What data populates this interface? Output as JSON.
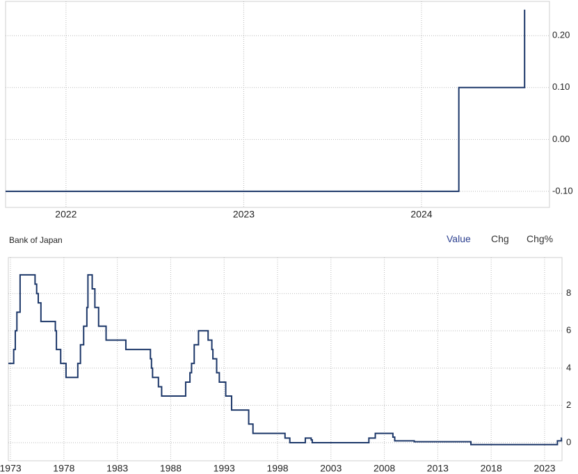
{
  "header": {
    "source": "Bank of Japan",
    "tabs": [
      "Value",
      "Chg",
      "Chg%"
    ]
  },
  "chart_data": [
    {
      "type": "line",
      "color": "#1b3668",
      "grid": true,
      "x": [
        2021.66,
        2024.21,
        2024.21,
        2024.58,
        2024.58
      ],
      "values": [
        -0.1,
        -0.1,
        0.1,
        0.1,
        0.25
      ],
      "xlim": [
        2021.66,
        2024.72
      ],
      "xticks": [
        2022,
        2023,
        2024
      ],
      "ylim": [
        -0.131,
        0.266
      ],
      "yticks": [
        {
          "value": -0.1,
          "label": "-0.10"
        },
        {
          "value": 0,
          "label": "0.00"
        },
        {
          "value": 0.1,
          "label": "0.10"
        },
        {
          "value": 0.2,
          "label": "0.20"
        }
      ]
    },
    {
      "type": "line",
      "color": "#1b3668",
      "grid": true,
      "x": [
        1972.8,
        1973.3,
        1973.3,
        1973.45,
        1973.45,
        1973.6,
        1973.6,
        1973.9,
        1973.9,
        1975.3,
        1975.3,
        1975.45,
        1975.45,
        1975.6,
        1975.6,
        1975.85,
        1975.85,
        1977.2,
        1977.2,
        1977.3,
        1977.3,
        1977.7,
        1977.7,
        1978.2,
        1978.2,
        1979.3,
        1979.3,
        1979.55,
        1979.55,
        1979.85,
        1979.85,
        1980.15,
        1980.15,
        1980.25,
        1980.25,
        1980.65,
        1980.65,
        1980.9,
        1980.9,
        1981.25,
        1981.25,
        1981.95,
        1981.95,
        1983.8,
        1983.8,
        1986.1,
        1986.1,
        1986.2,
        1986.2,
        1986.3,
        1986.3,
        1986.85,
        1986.85,
        1987.15,
        1987.15,
        1989.4,
        1989.4,
        1989.8,
        1989.8,
        1989.95,
        1989.95,
        1990.2,
        1990.2,
        1990.6,
        1990.6,
        1991.5,
        1991.5,
        1991.85,
        1991.85,
        1991.95,
        1991.95,
        1992.3,
        1992.3,
        1992.55,
        1992.55,
        1993.15,
        1993.15,
        1993.7,
        1993.7,
        1995.3,
        1995.3,
        1995.7,
        1995.7,
        1998.7,
        1998.7,
        1999.15,
        1999.15,
        2000.6,
        2000.6,
        2001.15,
        2001.15,
        2001.25,
        2001.25,
        2006.55,
        2006.55,
        2007.15,
        2007.15,
        2008.8,
        2008.8,
        2008.97,
        2008.97,
        2010.8,
        2010.8,
        2016.1,
        2016.1,
        2024.2,
        2024.2,
        2024.58,
        2024.58,
        2024.6
      ],
      "values": [
        4.25,
        4.25,
        5,
        5,
        6,
        6,
        7,
        7,
        9,
        9,
        8.5,
        8.5,
        8,
        8,
        7.5,
        7.5,
        6.5,
        6.5,
        6,
        6,
        5,
        5,
        4.25,
        4.25,
        3.5,
        3.5,
        4.25,
        4.25,
        5.25,
        5.25,
        6.25,
        6.25,
        7.25,
        7.25,
        9,
        9,
        8.25,
        8.25,
        7.25,
        7.25,
        6.25,
        6.25,
        5.5,
        5.5,
        5,
        5,
        4.5,
        4.5,
        4,
        4,
        3.5,
        3.5,
        3,
        3,
        2.5,
        2.5,
        3.25,
        3.25,
        3.75,
        3.75,
        4.25,
        4.25,
        5.25,
        5.25,
        6,
        6,
        5.5,
        5.5,
        5,
        5,
        4.5,
        4.5,
        3.75,
        3.75,
        3.25,
        3.25,
        2.5,
        2.5,
        1.75,
        1.75,
        1,
        1,
        0.5,
        0.5,
        0.25,
        0.25,
        0,
        0,
        0.25,
        0.25,
        0.15,
        0.15,
        0,
        0,
        0.25,
        0.25,
        0.5,
        0.5,
        0.3,
        0.3,
        0.1,
        0.1,
        0.05,
        0.05,
        -0.1,
        -0.1,
        0.1,
        0.1,
        0.25,
        0.25
      ],
      "xlim": [
        1972.8,
        2024.63
      ],
      "xticks": [
        1973,
        1978,
        1983,
        1988,
        1993,
        1998,
        2003,
        2008,
        2013,
        2018,
        2023
      ],
      "ylim": [
        -0.97,
        9.93
      ],
      "yticks": [
        0,
        2,
        4,
        6,
        8
      ]
    }
  ]
}
